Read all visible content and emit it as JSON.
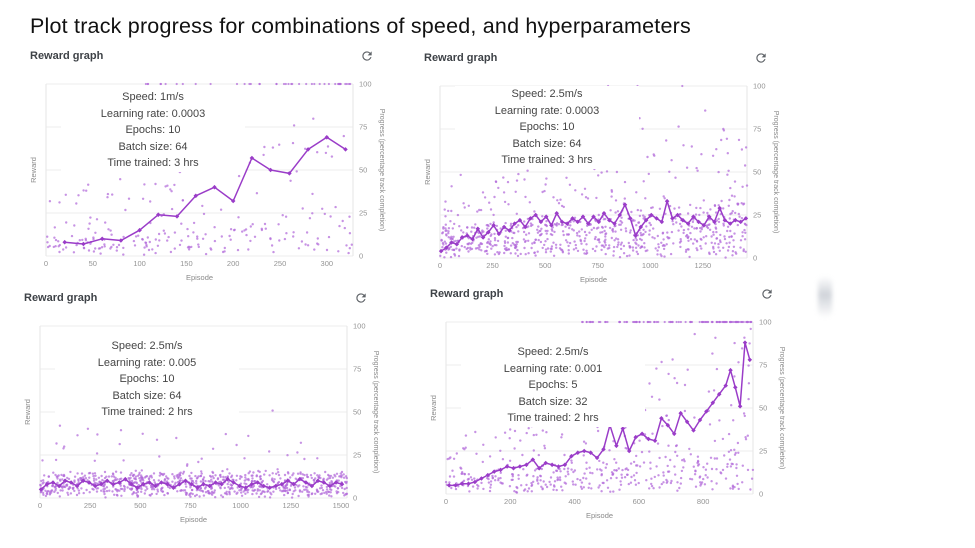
{
  "page": {
    "title": "Plot track progress for combinations of speed, and hyperparameters"
  },
  "shared": {
    "panel_title": "Reward graph",
    "xlabel": "Episode",
    "ylabel_left": "Reward",
    "ylabel_right": "Progress (percentage track completion)",
    "yticks": [
      0,
      25,
      50,
      75,
      100
    ],
    "colors": {
      "line": "#9a3cc8",
      "scatter_dot": "#b269d9",
      "grid": "#ececec",
      "tick_text": "#949494",
      "header_text": "#3e4247",
      "refresh_icon": "#5f6368"
    }
  },
  "chart_data": [
    {
      "type": "scatter",
      "title": "Reward graph",
      "annotation": [
        "Speed: 1m/s",
        "Learning rate: 0.0003",
        "Epochs: 10",
        "Batch size: 64",
        "Time trained: 3 hrs"
      ],
      "xlabel": "Episode",
      "ylabel": "Reward",
      "ylabel_right": "Progress (percentage track completion)",
      "xticks": [
        0,
        50,
        100,
        150,
        200,
        250,
        300
      ],
      "xmax": 328,
      "ylim": [
        0,
        100
      ],
      "line": [
        [
          20,
          8
        ],
        [
          40,
          7
        ],
        [
          60,
          10
        ],
        [
          80,
          9
        ],
        [
          100,
          15
        ],
        [
          120,
          24
        ],
        [
          140,
          23
        ],
        [
          160,
          35
        ],
        [
          180,
          40
        ],
        [
          200,
          32
        ],
        [
          220,
          57
        ],
        [
          240,
          50
        ],
        [
          260,
          48
        ],
        [
          280,
          62
        ],
        [
          300,
          69
        ],
        [
          320,
          62
        ]
      ],
      "scatter": {
        "seed": 11,
        "count": 235,
        "minF": 0.3,
        "bandH": 22,
        "bandPow": 1.3,
        "jitter": 6,
        "hiProb": 0.45,
        "hiAmp": 85,
        "hiPow": 1.2,
        "top_row": {
          "from": 90,
          "to": 325,
          "count": 42,
          "skew": 1.7
        }
      }
    },
    {
      "type": "scatter",
      "title": "Reward graph",
      "annotation": [
        "Speed: 2.5m/s",
        "Learning rate: 0.0003",
        "Epochs: 10",
        "Batch size: 64",
        "Time trained: 3 hrs"
      ],
      "xlabel": "Episode",
      "ylabel": "Reward",
      "ylabel_right": "Progress (percentage track completion)",
      "xticks": [
        0,
        250,
        500,
        750,
        1000,
        1250
      ],
      "xmax": 1460,
      "ylim": [
        0,
        100
      ],
      "line": [
        [
          5,
          4
        ],
        [
          30,
          6
        ],
        [
          55,
          9
        ],
        [
          80,
          8
        ],
        [
          105,
          12
        ],
        [
          130,
          13
        ],
        [
          155,
          11
        ],
        [
          180,
          17
        ],
        [
          205,
          12
        ],
        [
          230,
          15
        ],
        [
          255,
          19
        ],
        [
          280,
          14
        ],
        [
          305,
          18
        ],
        [
          330,
          16
        ],
        [
          355,
          20
        ],
        [
          380,
          22
        ],
        [
          405,
          18
        ],
        [
          430,
          23
        ],
        [
          455,
          25
        ],
        [
          480,
          21
        ],
        [
          505,
          24
        ],
        [
          530,
          19
        ],
        [
          555,
          26
        ],
        [
          580,
          21
        ],
        [
          605,
          20
        ],
        [
          630,
          23
        ],
        [
          655,
          21
        ],
        [
          680,
          24
        ],
        [
          705,
          20
        ],
        [
          730,
          24
        ],
        [
          755,
          21
        ],
        [
          780,
          26
        ],
        [
          805,
          22
        ],
        [
          830,
          20
        ],
        [
          855,
          25
        ],
        [
          880,
          31
        ],
        [
          905,
          23
        ],
        [
          930,
          13
        ],
        [
          955,
          18
        ],
        [
          980,
          22
        ],
        [
          1005,
          25
        ],
        [
          1030,
          23
        ],
        [
          1055,
          21
        ],
        [
          1080,
          33
        ],
        [
          1105,
          23
        ],
        [
          1130,
          25
        ],
        [
          1155,
          22
        ],
        [
          1180,
          20
        ],
        [
          1205,
          24
        ],
        [
          1230,
          21
        ],
        [
          1255,
          19
        ],
        [
          1280,
          24
        ],
        [
          1305,
          21
        ],
        [
          1330,
          29
        ],
        [
          1355,
          22
        ],
        [
          1380,
          20
        ],
        [
          1405,
          22
        ],
        [
          1430,
          21
        ],
        [
          1455,
          23
        ]
      ],
      "scatter": {
        "seed": 23,
        "count": 800,
        "minF": 0.45,
        "bandH": 30,
        "bandPow": 1.2,
        "jitter": 5,
        "hiProb": 0.28,
        "hiAmp": 75,
        "hiPow": 1.8,
        "top_row": {
          "from": 500,
          "to": 1400,
          "count": 3,
          "skew": 1
        }
      }
    },
    {
      "type": "scatter",
      "title": "Reward graph",
      "annotation": [
        "Speed: 2.5m/s",
        "Learning rate: 0.005",
        "Epochs: 10",
        "Batch size: 64",
        "Time trained: 2 hrs"
      ],
      "xlabel": "Episode",
      "ylabel": "Reward",
      "ylabel_right": "Progress (percentage track completion)",
      "xticks": [
        0,
        250,
        500,
        750,
        1000,
        1250,
        1500
      ],
      "xmax": 1530,
      "ylim": [
        0,
        100
      ],
      "line": [
        [
          5,
          5
        ],
        [
          35,
          8
        ],
        [
          65,
          9
        ],
        [
          95,
          7
        ],
        [
          125,
          10
        ],
        [
          155,
          9
        ],
        [
          185,
          7
        ],
        [
          215,
          10
        ],
        [
          245,
          9
        ],
        [
          275,
          7
        ],
        [
          305,
          8
        ],
        [
          335,
          10
        ],
        [
          365,
          8
        ],
        [
          395,
          9
        ],
        [
          425,
          11
        ],
        [
          455,
          8
        ],
        [
          485,
          6
        ],
        [
          515,
          8
        ],
        [
          545,
          9
        ],
        [
          575,
          7
        ],
        [
          605,
          9
        ],
        [
          635,
          8
        ],
        [
          665,
          6
        ],
        [
          695,
          8
        ],
        [
          725,
          10
        ],
        [
          755,
          8
        ],
        [
          785,
          6
        ],
        [
          815,
          8
        ],
        [
          845,
          7
        ],
        [
          875,
          9
        ],
        [
          905,
          8
        ],
        [
          935,
          11
        ],
        [
          965,
          9
        ],
        [
          995,
          7
        ],
        [
          1025,
          6
        ],
        [
          1055,
          8
        ],
        [
          1085,
          9
        ],
        [
          1115,
          7
        ],
        [
          1145,
          6
        ],
        [
          1175,
          7
        ],
        [
          1205,
          8
        ],
        [
          1235,
          10
        ],
        [
          1265,
          8
        ],
        [
          1295,
          11
        ],
        [
          1325,
          9
        ],
        [
          1355,
          7
        ],
        [
          1385,
          10
        ],
        [
          1415,
          9
        ],
        [
          1445,
          7
        ],
        [
          1475,
          9
        ],
        [
          1505,
          8
        ]
      ],
      "scatter": {
        "seed": 37,
        "count": 850,
        "minF": 0.92,
        "bandH": 13,
        "bandPow": 1.1,
        "jitter": 4,
        "hiProb": 0.09,
        "hiAmp": 42,
        "hiPow": 2.2,
        "top_row": {
          "from": 0,
          "to": 0,
          "count": 0,
          "skew": 1
        }
      }
    },
    {
      "type": "scatter",
      "title": "Reward graph",
      "annotation": [
        "Speed: 2.5m/s",
        "Learning rate: 0.001",
        "Epochs: 5",
        "Batch size: 32",
        "Time trained: 2 hrs"
      ],
      "xlabel": "Episode",
      "ylabel": "Reward",
      "ylabel_right": "Progress (percentage track completion)",
      "xticks": [
        0,
        200,
        400,
        600,
        800
      ],
      "xmax": 955,
      "ylim": [
        0,
        100
      ],
      "line": [
        [
          10,
          5
        ],
        [
          30,
          5
        ],
        [
          50,
          6
        ],
        [
          70,
          6
        ],
        [
          90,
          7
        ],
        [
          110,
          9
        ],
        [
          130,
          11
        ],
        [
          150,
          13
        ],
        [
          170,
          14
        ],
        [
          190,
          16
        ],
        [
          210,
          15
        ],
        [
          230,
          16
        ],
        [
          250,
          17
        ],
        [
          270,
          20
        ],
        [
          290,
          15
        ],
        [
          310,
          18
        ],
        [
          330,
          17
        ],
        [
          350,
          16
        ],
        [
          370,
          17
        ],
        [
          390,
          22
        ],
        [
          410,
          24
        ],
        [
          430,
          25
        ],
        [
          450,
          24
        ],
        [
          470,
          21
        ],
        [
          490,
          26
        ],
        [
          510,
          40
        ],
        [
          530,
          28
        ],
        [
          550,
          38
        ],
        [
          570,
          25
        ],
        [
          590,
          33
        ],
        [
          610,
          35
        ],
        [
          630,
          32
        ],
        [
          650,
          31
        ],
        [
          670,
          44
        ],
        [
          690,
          40
        ],
        [
          710,
          35
        ],
        [
          730,
          47
        ],
        [
          750,
          42
        ],
        [
          770,
          37
        ],
        [
          790,
          43
        ],
        [
          810,
          48
        ],
        [
          830,
          53
        ],
        [
          850,
          58
        ],
        [
          870,
          63
        ],
        [
          885,
          72
        ],
        [
          900,
          62
        ],
        [
          915,
          51
        ],
        [
          930,
          88
        ],
        [
          945,
          78
        ]
      ],
      "scatter": {
        "seed": 51,
        "count": 470,
        "minF": 0.25,
        "bandH": 24,
        "bandPow": 1.2,
        "jitter": 6,
        "hiProb": 0.42,
        "hiAmp": 80,
        "hiPow": 1.4,
        "top_row": {
          "from": 420,
          "to": 950,
          "count": 110,
          "skew": 1.3
        }
      }
    }
  ]
}
